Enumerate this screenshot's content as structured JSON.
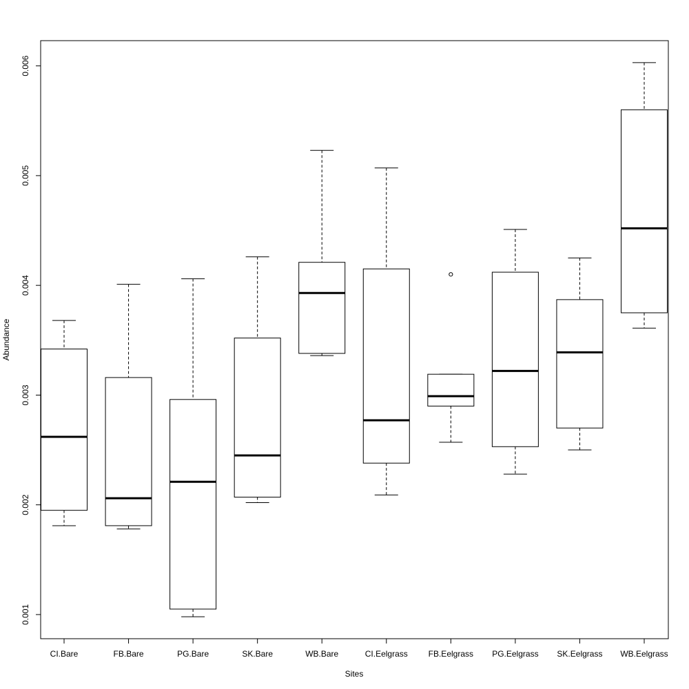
{
  "chart_data": {
    "type": "boxplot",
    "title": "",
    "xlabel": "Sites",
    "ylabel": "Abundance",
    "ylim": [
      0.00078,
      0.00623
    ],
    "yticks": [
      0.001,
      0.002,
      0.003,
      0.004,
      0.005,
      0.006
    ],
    "ytick_labels": [
      "0.001",
      "0.002",
      "0.003",
      "0.004",
      "0.005",
      "0.006"
    ],
    "grid": false,
    "categories": [
      "CI.Bare",
      "FB.Bare",
      "PG.Bare",
      "SK.Bare",
      "WB.Bare",
      "CI.Eelgrass",
      "FB.Eelgrass",
      "PG.Eelgrass",
      "SK.Eelgrass",
      "WB.Eelgrass"
    ],
    "boxes": [
      {
        "min": 0.00181,
        "q1": 0.00195,
        "median": 0.00262,
        "q3": 0.00342,
        "max": 0.00368,
        "outliers": []
      },
      {
        "min": 0.00178,
        "q1": 0.00181,
        "median": 0.00206,
        "q3": 0.00316,
        "max": 0.00401,
        "outliers": []
      },
      {
        "min": 0.00098,
        "q1": 0.00105,
        "median": 0.00221,
        "q3": 0.00296,
        "max": 0.00406,
        "outliers": []
      },
      {
        "min": 0.00202,
        "q1": 0.00207,
        "median": 0.00245,
        "q3": 0.00352,
        "max": 0.00426,
        "outliers": []
      },
      {
        "min": 0.00336,
        "q1": 0.00338,
        "median": 0.00393,
        "q3": 0.00421,
        "max": 0.00523,
        "outliers": []
      },
      {
        "min": 0.00209,
        "q1": 0.00238,
        "median": 0.00277,
        "q3": 0.00415,
        "max": 0.00507,
        "outliers": []
      },
      {
        "min": 0.00257,
        "q1": 0.0029,
        "median": 0.00299,
        "q3": 0.00319,
        "max": 0.00319,
        "outliers": [
          0.0041
        ]
      },
      {
        "min": 0.00228,
        "q1": 0.00253,
        "median": 0.00322,
        "q3": 0.00412,
        "max": 0.00451,
        "outliers": []
      },
      {
        "min": 0.0025,
        "q1": 0.0027,
        "median": 0.00339,
        "q3": 0.00387,
        "max": 0.00425,
        "outliers": []
      },
      {
        "min": 0.00361,
        "q1": 0.00375,
        "median": 0.00452,
        "q3": 0.0056,
        "max": 0.00603,
        "outliers": []
      }
    ]
  }
}
